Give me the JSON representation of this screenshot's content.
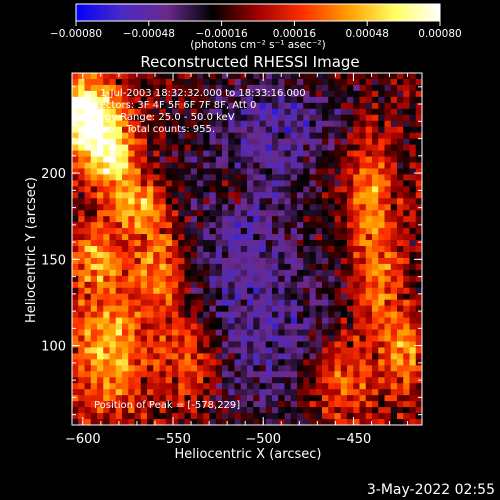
{
  "chart_data": {
    "type": "heatmap",
    "title": "Reconstructed RHESSI Image",
    "xlabel": "Heliocentric X (arcsec)",
    "ylabel": "Heliocentric Y (arcsec)",
    "xlim": [
      -606,
      -412
    ],
    "ylim": [
      54,
      258
    ],
    "x_ticks": [
      -600,
      -550,
      -500,
      -450
    ],
    "x_tick_labels": [
      "−600",
      "−550",
      "−500",
      "−450"
    ],
    "y_ticks": [
      100,
      150,
      200
    ],
    "y_tick_labels": [
      "100",
      "150",
      "200"
    ],
    "colorbar": {
      "range": [
        -0.0008,
        0.0008
      ],
      "ticks": [
        -0.0008,
        -0.00048,
        -0.00016,
        0.00016,
        0.00048,
        0.0008
      ],
      "tick_labels": [
        "−0.00080",
        "−0.00048",
        "−0.00016",
        "0.00016",
        "0.00048",
        "0.00080"
      ],
      "unit_label": "(photons cm⁻² s⁻¹ asec⁻²)",
      "colors": [
        "#0000ff",
        "#4a2ac4",
        "#6a2a8c",
        "#000000",
        "#a00000",
        "#ff3000",
        "#ffa000",
        "#ffff60",
        "#ffffff"
      ]
    },
    "annotations": [
      "1-Jul-2003 18:32:32.000 to 18:33:16.000",
      "Detectors: 3F 4F 5F 6F 7F 8F, Att 0",
      "Energy Range: 25.0 - 50.0 keV",
      "Clean     Total counts: 955."
    ],
    "peak_label": "Position of Peak = [-578,229]",
    "peak": {
      "x": -578,
      "y": 229
    },
    "hot_regions": [
      {
        "x": -598,
        "y": 232,
        "sx": 12,
        "sy": 16,
        "amp": 1.5
      },
      {
        "x": -583,
        "y": 208,
        "sx": 10,
        "sy": 14,
        "amp": 0.9
      },
      {
        "x": -570,
        "y": 180,
        "sx": 10,
        "sy": 10,
        "amp": 0.8
      },
      {
        "x": -592,
        "y": 150,
        "sx": 9,
        "sy": 14,
        "amp": 0.7
      },
      {
        "x": -557,
        "y": 145,
        "sx": 10,
        "sy": 20,
        "amp": 0.75
      },
      {
        "x": -585,
        "y": 95,
        "sx": 14,
        "sy": 25,
        "amp": 0.8
      },
      {
        "x": -540,
        "y": 90,
        "sx": 12,
        "sy": 20,
        "amp": 0.6
      },
      {
        "x": -518,
        "y": 190,
        "sx": 6,
        "sy": 8,
        "amp": 0.45
      },
      {
        "x": -440,
        "y": 190,
        "sx": 9,
        "sy": 22,
        "amp": 0.65
      },
      {
        "x": -435,
        "y": 135,
        "sx": 9,
        "sy": 22,
        "amp": 0.6
      },
      {
        "x": -455,
        "y": 80,
        "sx": 14,
        "sy": 18,
        "amp": 0.75
      },
      {
        "x": -420,
        "y": 95,
        "sx": 8,
        "sy": 16,
        "amp": 0.6
      }
    ],
    "cold_regions": [
      {
        "x": -510,
        "y": 150,
        "sx": 28,
        "sy": 70,
        "amp": 0.55
      },
      {
        "x": -480,
        "y": 230,
        "sx": 25,
        "sy": 18,
        "amp": 0.4
      },
      {
        "x": -470,
        "y": 95,
        "sx": 22,
        "sy": 25,
        "amp": 0.35
      }
    ]
  },
  "footer_date": "3-May-2022 02:55"
}
